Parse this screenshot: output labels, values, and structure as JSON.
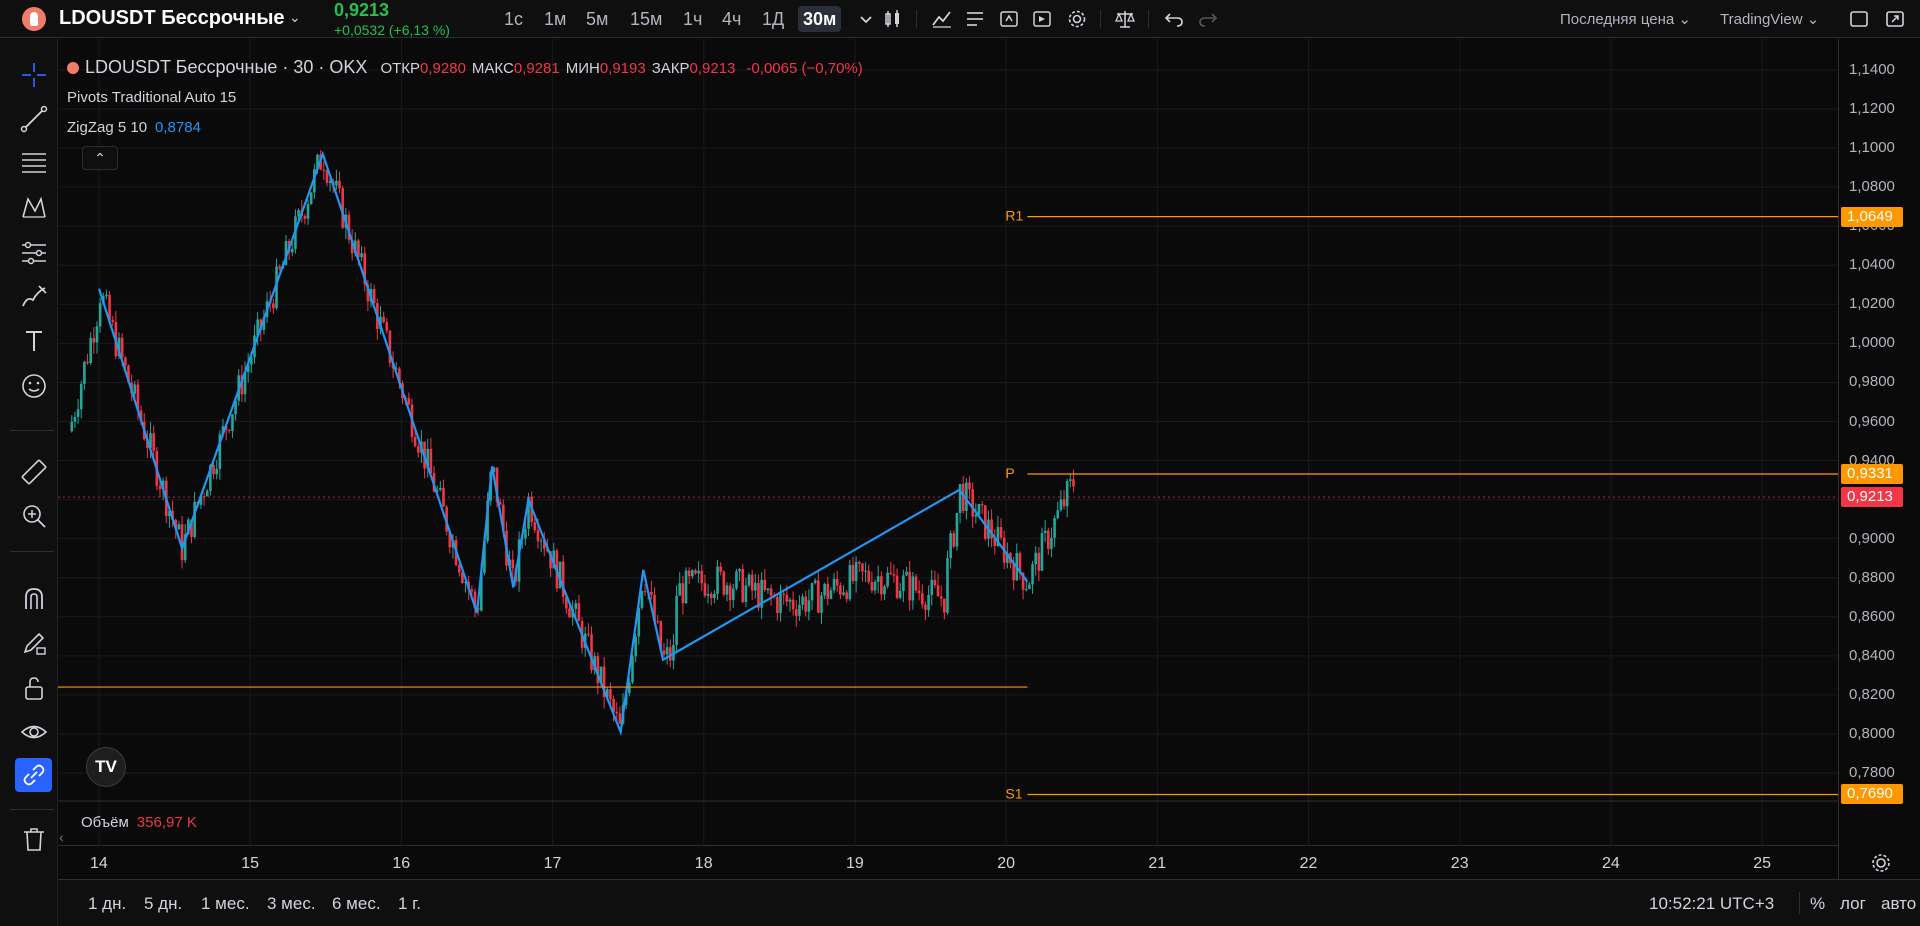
{
  "header": {
    "symbol": "LDOUSDT Бессрочные",
    "price": "0,9213",
    "change": "+0,0532 (+6,13 %)",
    "timeframes": [
      {
        "label": "1с",
        "active": false
      },
      {
        "label": "1м",
        "active": false
      },
      {
        "label": "5м",
        "active": false
      },
      {
        "label": "15м",
        "active": false
      },
      {
        "label": "1ч",
        "active": false
      },
      {
        "label": "4ч",
        "active": false
      },
      {
        "label": "1Д",
        "active": false
      },
      {
        "label": "30м",
        "active": true
      }
    ],
    "price_type": "Последняя цена",
    "provider": "TradingView",
    "icons": [
      "chevron-down-icon",
      "candle-style-icon",
      "indicators-icon",
      "templates-icon",
      "alert-icon",
      "replay-icon",
      "settings-icon",
      "compare-icon",
      "undo-icon",
      "redo-icon",
      "fullscreen-icon",
      "snapshot-icon"
    ]
  },
  "left_toolbar": {
    "tools": [
      "crosshair-icon",
      "trend-line-icon",
      "fib-lines-icon",
      "pattern-icon",
      "prediction-icon",
      "brush-icon",
      "text-icon",
      "emoji-icon",
      "ruler-icon",
      "zoom-in-icon",
      "magnet-icon",
      "lock-draw-icon",
      "unlock-icon",
      "eye-icon",
      "link-icon",
      "trash-icon"
    ]
  },
  "legend": {
    "symbol_line": "LDOUSDT Бессрочные · 30 · OKX",
    "ohlc": [
      {
        "label": "ОТКР",
        "value": "0,9280"
      },
      {
        "label": "МАКС",
        "value": "0,9281"
      },
      {
        "label": "МИН",
        "value": "0,9193"
      },
      {
        "label": "ЗАКР",
        "value": "0,9213"
      }
    ],
    "change": "-0,0065 (−0,70%)",
    "pivots": "Pivots Traditional Auto 15",
    "zigzag_label": "ZigZag 5 10",
    "zigzag_value": "0,8784",
    "volume_label": "Объём",
    "volume_value": "356,97 K",
    "tv_logo": "TV"
  },
  "price_scale": {
    "ticks": [
      "1,1400",
      "1,1200",
      "1,1000",
      "1,0800",
      "1,0600",
      "1,0400",
      "1,0200",
      "1,0000",
      "0,9800",
      "0,9600",
      "0,9400",
      "0,9200",
      "0,9000",
      "0,8800",
      "0,8600",
      "0,8400",
      "0,8200",
      "0,8000",
      "0,7800"
    ],
    "r1": "1,0649",
    "p": "0,9331",
    "s1": "0,7690",
    "last": "0,9213"
  },
  "pivot_labels": {
    "r1": "R1",
    "p": "P",
    "s1": "S1"
  },
  "time_axis": [
    "14",
    "15",
    "16",
    "17",
    "18",
    "19",
    "20",
    "21",
    "22",
    "23",
    "24",
    "25"
  ],
  "bottom": {
    "ranges": [
      "1 дн.",
      "5 дн.",
      "1 мес.",
      "3 мес.",
      "6 мес.",
      "1 г."
    ],
    "clock": "10:52:21 UTC+3",
    "percent": "%",
    "log": "лог",
    "auto": "авто"
  },
  "chart_data": {
    "type": "candlestick",
    "interval": "30m",
    "ylim": [
      0.77,
      1.145
    ],
    "x_labels": [
      "14",
      "15",
      "16",
      "17",
      "18",
      "19",
      "20",
      "21",
      "22",
      "23",
      "24",
      "25"
    ],
    "zigzag_points": [
      {
        "day": 14.0,
        "price": 1.028
      },
      {
        "day": 14.55,
        "price": 0.895
      },
      {
        "day": 15.48,
        "price": 1.097
      },
      {
        "day": 16.5,
        "price": 0.862
      },
      {
        "day": 16.6,
        "price": 0.937
      },
      {
        "day": 16.74,
        "price": 0.875
      },
      {
        "day": 16.84,
        "price": 0.92
      },
      {
        "day": 17.45,
        "price": 0.801
      },
      {
        "day": 17.6,
        "price": 0.884
      },
      {
        "day": 17.73,
        "price": 0.838
      },
      {
        "day": 19.69,
        "price": 0.925
      },
      {
        "day": 20.14,
        "price": 0.878
      }
    ],
    "pivot_levels": {
      "R1": 1.0649,
      "P": 0.9331,
      "S1": 0.769,
      "extra_level": 0.824
    },
    "last_price": 0.9213,
    "colors": {
      "up": "#26a69a",
      "down": "#f23645",
      "zigzag": "#2196f3",
      "pivot": "#ff9800"
    }
  }
}
